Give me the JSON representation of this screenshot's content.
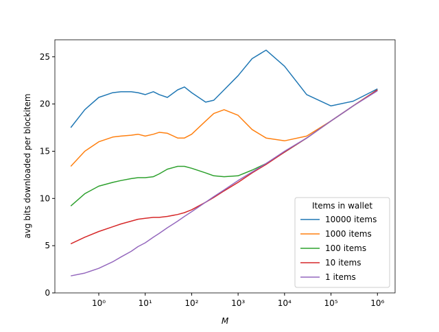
{
  "chart_data": {
    "type": "line",
    "x_label": "M",
    "y_label": "avg bits downloaded per blockitem",
    "xscale": "log",
    "x": [
      0.25,
      0.5,
      1,
      2,
      3,
      5,
      7,
      10,
      15,
      20,
      30,
      50,
      70,
      100,
      200,
      300,
      500,
      1000,
      2000,
      4000,
      10000,
      30000,
      100000,
      300000,
      1000000
    ],
    "series": [
      {
        "name": "10000 items",
        "color": "#1f77b4",
        "values": [
          17.5,
          19.4,
          20.7,
          21.2,
          21.3,
          21.3,
          21.2,
          21.0,
          21.3,
          21.0,
          20.7,
          21.5,
          21.8,
          21.2,
          20.2,
          20.4,
          21.5,
          23.0,
          24.8,
          25.7,
          24.0,
          21.0,
          19.8,
          20.3,
          21.6
        ]
      },
      {
        "name": "1000 items",
        "color": "#ff7f0e",
        "values": [
          13.4,
          15.0,
          16.0,
          16.5,
          16.6,
          16.7,
          16.8,
          16.6,
          16.8,
          17.0,
          16.9,
          16.4,
          16.4,
          16.8,
          18.2,
          19.0,
          19.4,
          18.8,
          17.3,
          16.4,
          16.1,
          16.6,
          18.2,
          19.8,
          21.5
        ]
      },
      {
        "name": "100 items",
        "color": "#2ca02c",
        "values": [
          9.2,
          10.5,
          11.3,
          11.7,
          11.9,
          12.1,
          12.2,
          12.2,
          12.3,
          12.6,
          13.1,
          13.4,
          13.4,
          13.2,
          12.7,
          12.4,
          12.3,
          12.4,
          13.0,
          13.7,
          14.9,
          16.4,
          18.2,
          19.8,
          21.5
        ]
      },
      {
        "name": "10 items",
        "color": "#d62728",
        "values": [
          5.2,
          5.9,
          6.5,
          7.0,
          7.3,
          7.6,
          7.8,
          7.9,
          8.0,
          8.0,
          8.1,
          8.3,
          8.5,
          8.8,
          9.6,
          10.1,
          10.8,
          11.7,
          12.7,
          13.6,
          14.9,
          16.4,
          18.2,
          19.8,
          21.5
        ]
      },
      {
        "name": "1 items",
        "color": "#9467bd",
        "values": [
          1.8,
          2.1,
          2.6,
          3.3,
          3.8,
          4.4,
          4.9,
          5.3,
          5.9,
          6.3,
          6.9,
          7.6,
          8.1,
          8.6,
          9.6,
          10.2,
          10.9,
          11.9,
          12.8,
          13.7,
          15.0,
          16.4,
          18.2,
          19.8,
          21.4
        ]
      }
    ],
    "legend_title": "Items in wallet",
    "legend_position": "lower right",
    "xlim": [
      0.1135,
      2400000
    ],
    "ylim": [
      0,
      26.8
    ],
    "xticks": [
      {
        "value": 1,
        "label": "10⁰"
      },
      {
        "value": 10,
        "label": "10¹"
      },
      {
        "value": 100,
        "label": "10²"
      },
      {
        "value": 1000,
        "label": "10³"
      },
      {
        "value": 10000,
        "label": "10⁴"
      },
      {
        "value": 100000,
        "label": "10⁵"
      },
      {
        "value": 1000000,
        "label": "10⁶"
      }
    ],
    "yticks": [
      0,
      5,
      10,
      15,
      20,
      25
    ]
  }
}
